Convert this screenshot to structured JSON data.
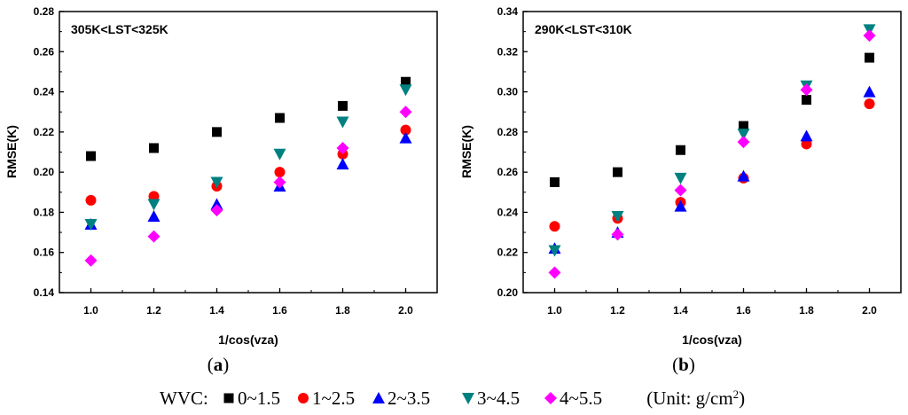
{
  "legend": {
    "prefix": "WVC: ",
    "unit_label": " (Unit: g/cm",
    "unit_exp": "2",
    "unit_close": ")"
  },
  "series_styles": [
    {
      "name": "0~1.5",
      "color": "#000000",
      "marker": "square"
    },
    {
      "name": "1~2.5",
      "color": "#ff0000",
      "marker": "circle"
    },
    {
      "name": "2~3.5",
      "color": "#0000ff",
      "marker": "triangle-up"
    },
    {
      "name": "3~4.5",
      "color": "#008080",
      "marker": "triangle-down"
    },
    {
      "name": "4~5.5",
      "color": "#ff00ff",
      "marker": "diamond"
    }
  ],
  "chart_data": [
    {
      "type": "scatter",
      "title": "305K<LST<325K",
      "caption_open": "(",
      "caption": "a",
      "caption_close": ")",
      "xlabel": "1/cos(vza)",
      "ylabel": "RMSE(K)",
      "xlim": [
        0.9,
        2.1
      ],
      "ylim": [
        0.14,
        0.28
      ],
      "xticks": [
        "1.0",
        "1.2",
        "1.4",
        "1.6",
        "1.8",
        "2.0"
      ],
      "yticks": [
        "0.14",
        "0.16",
        "0.18",
        "0.20",
        "0.22",
        "0.24",
        "0.26",
        "0.28"
      ],
      "x": [
        1.0,
        1.2,
        1.4,
        1.6,
        1.8,
        2.0
      ],
      "series": [
        {
          "name": "0~1.5",
          "values": [
            0.208,
            0.212,
            0.22,
            0.227,
            0.233,
            0.245
          ]
        },
        {
          "name": "1~2.5",
          "values": [
            0.186,
            0.188,
            0.193,
            0.2,
            0.209,
            0.221
          ]
        },
        {
          "name": "2~3.5",
          "values": [
            0.174,
            0.178,
            0.184,
            0.193,
            0.204,
            0.217
          ]
        },
        {
          "name": "3~4.5",
          "values": [
            0.174,
            0.184,
            0.195,
            0.209,
            0.225,
            0.241
          ]
        },
        {
          "name": "4~5.5",
          "values": [
            0.156,
            0.168,
            0.181,
            0.195,
            0.212,
            0.23
          ]
        }
      ]
    },
    {
      "type": "scatter",
      "title": "290K<LST<310K",
      "caption_open": "(",
      "caption": "b",
      "caption_close": ")",
      "xlabel": "1/cos(vza)",
      "ylabel": "RMSE(K)",
      "xlim": [
        0.9,
        2.1
      ],
      "ylim": [
        0.2,
        0.34
      ],
      "xticks": [
        "1.0",
        "1.2",
        "1.4",
        "1.6",
        "1.8",
        "2.0"
      ],
      "yticks": [
        "0.20",
        "0.22",
        "0.24",
        "0.26",
        "0.28",
        "0.30",
        "0.32",
        "0.34"
      ],
      "x": [
        1.0,
        1.2,
        1.4,
        1.6,
        1.8,
        2.0
      ],
      "series": [
        {
          "name": "0~1.5",
          "values": [
            0.255,
            0.26,
            0.271,
            0.283,
            0.296,
            0.317
          ]
        },
        {
          "name": "1~2.5",
          "values": [
            0.233,
            0.237,
            0.245,
            0.257,
            0.274,
            0.294
          ]
        },
        {
          "name": "2~3.5",
          "values": [
            0.222,
            0.23,
            0.243,
            0.258,
            0.278,
            0.3
          ]
        },
        {
          "name": "3~4.5",
          "values": [
            0.221,
            0.238,
            0.257,
            0.279,
            0.303,
            0.331
          ]
        },
        {
          "name": "4~5.5",
          "values": [
            0.21,
            0.229,
            0.251,
            0.275,
            0.301,
            0.328
          ]
        }
      ]
    }
  ]
}
